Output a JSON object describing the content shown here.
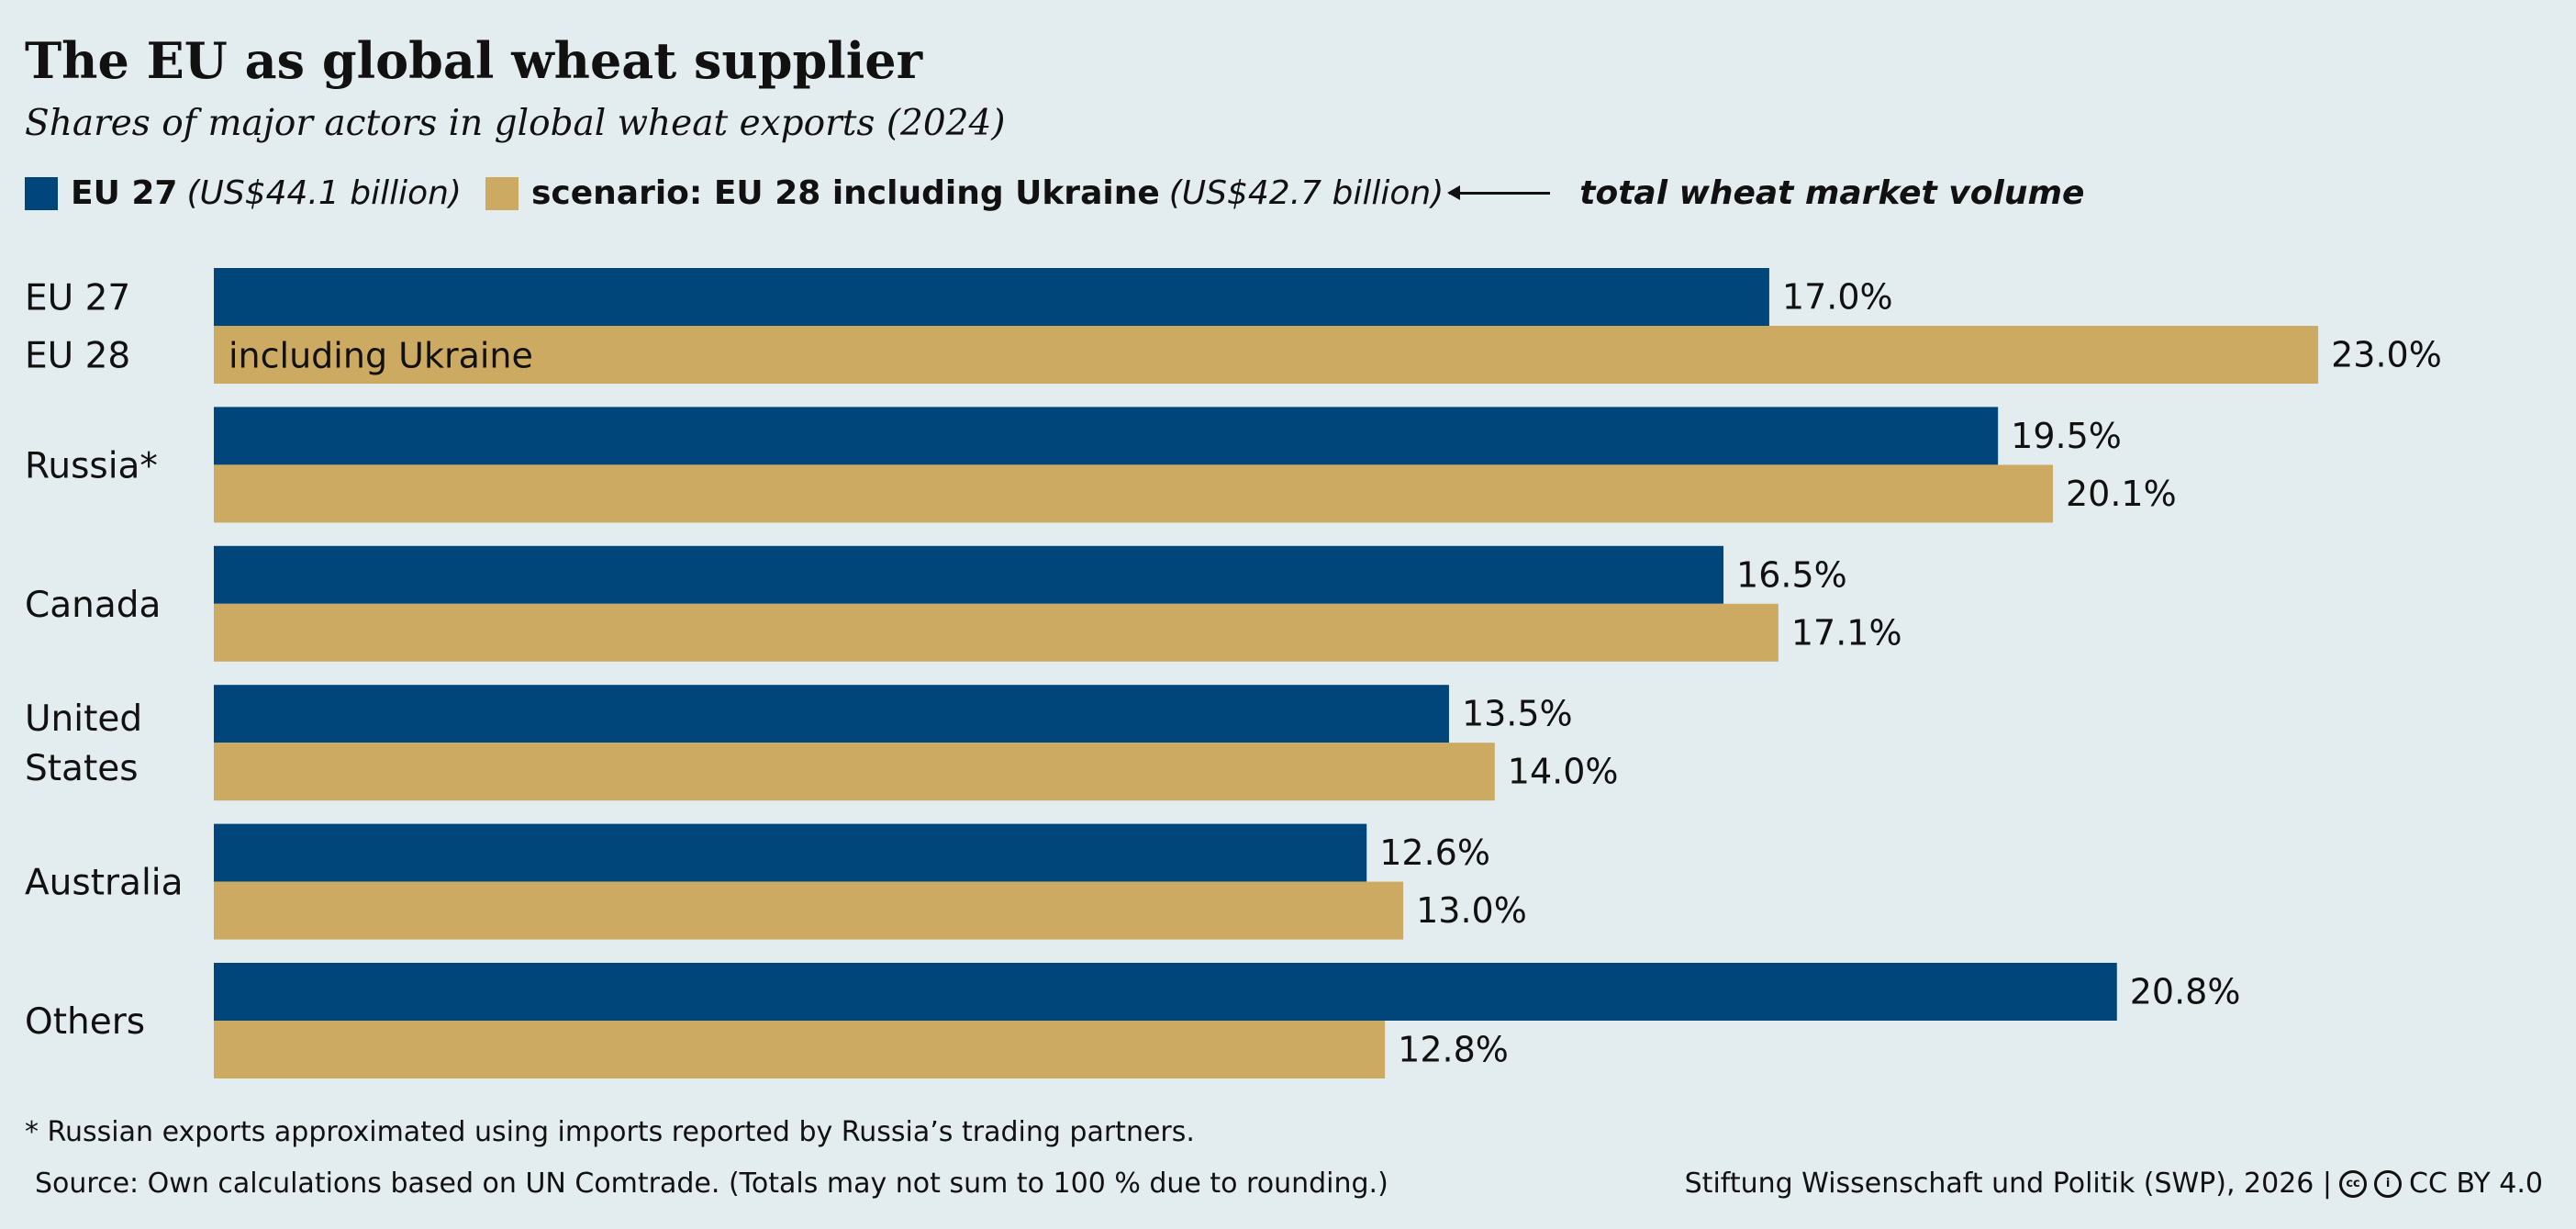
{
  "title": "The EU as global wheat supplier",
  "subtitle": "Shares of major actors in global wheat exports (2024)",
  "legend": {
    "eu27_label": "EU 27",
    "eu27_value": "(US$44.1 billion)",
    "eu28_label": "scenario: EU 28 including Ukraine",
    "eu28_value": "(US$42.7 billion)",
    "annotation": "total wheat market volume"
  },
  "colors": {
    "eu27": "#00467a",
    "eu28": "#cdaa62",
    "background": "#e3ecef"
  },
  "chart_data": {
    "type": "bar",
    "orientation": "horizontal",
    "title": "The EU as global wheat supplier",
    "categories": [
      "EU 27 / EU 28",
      "Russia*",
      "Canada",
      "United States",
      "Australia",
      "Others"
    ],
    "category_labels": [
      [
        "EU 27",
        "EU 28"
      ],
      [
        "Russia*"
      ],
      [
        "Canada"
      ],
      [
        "United",
        "States"
      ],
      [
        "Australia"
      ],
      [
        "Others"
      ]
    ],
    "series": [
      {
        "name": "EU 27",
        "values": [
          17.0,
          19.5,
          16.5,
          13.5,
          12.6,
          20.8
        ],
        "labels": [
          "17.0%",
          "19.5%",
          "16.5%",
          "13.5%",
          "12.6%",
          "20.8%"
        ]
      },
      {
        "name": "scenario: EU 28 including Ukraine",
        "values": [
          23.0,
          20.1,
          17.1,
          14.0,
          13.0,
          12.8
        ],
        "labels": [
          "23.0%",
          "20.1%",
          "17.1%",
          "14.0%",
          "13.0%",
          "12.8%"
        ]
      }
    ],
    "inbar_label": "including Ukraine",
    "unit": "%",
    "xlim": [
      0,
      25
    ]
  },
  "footnote": "* Russian exports approximated using imports reported by Russia’s trading partners.",
  "source": "Source: Own calculations based on UN Comtrade. (Totals may not sum to 100 % due to rounding.)",
  "credit": "Stiftung Wissenschaft und Politik (SWP), 2026 |",
  "license": "CC BY 4.0"
}
